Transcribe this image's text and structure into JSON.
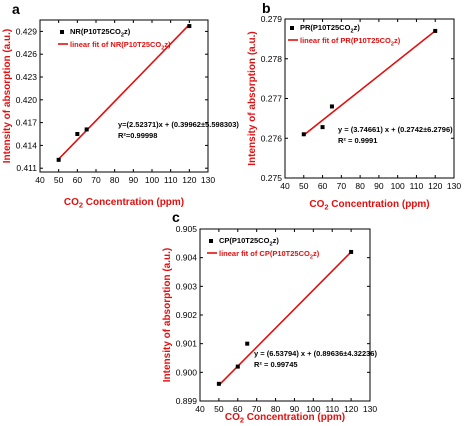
{
  "colors": {
    "fit_line": "#e01010",
    "points": "#000000",
    "axis_title_y": "#e01010",
    "axis": "#000000"
  },
  "chart_data": [
    {
      "type": "scatter",
      "panel": "a",
      "xlabel_main": "CO",
      "xlabel_sub": "2",
      "xlabel_rest": " Concentration (ppm)",
      "ylabel": "Intensity of absorption (a.u.)",
      "xlim": [
        40,
        130
      ],
      "ylim": [
        0.4105,
        0.4305
      ],
      "xticks": [
        40,
        50,
        60,
        70,
        80,
        90,
        100,
        110,
        120,
        130
      ],
      "yticks": [
        0.411,
        0.414,
        0.417,
        0.42,
        0.423,
        0.426,
        0.429
      ],
      "ytick_labels": [
        "0.411",
        "0.414",
        "0.417",
        "0.420",
        "0.423",
        "0.426",
        "0.429"
      ],
      "legend": {
        "points_label": "NR(P10T25CO",
        "points_sub": "2",
        "points_tail": "z)",
        "fit_label": "linear fit of NR(P10T25CO",
        "fit_sub": "2",
        "fit_tail": "z)"
      },
      "points": [
        {
          "x": 50,
          "y": 0.4121
        },
        {
          "x": 60,
          "y": 0.4155
        },
        {
          "x": 65,
          "y": 0.4161
        },
        {
          "x": 120,
          "y": 0.4297
        }
      ],
      "fit": {
        "x1": 50,
        "y1": 0.4122,
        "x2": 120,
        "y2": 0.4299
      },
      "equation": [
        "y=(2.52371)x + (0.39962±5.598303)",
        "R²=0.99998"
      ]
    },
    {
      "type": "scatter",
      "panel": "b",
      "xlabel_main": "CO",
      "xlabel_sub": "2",
      "xlabel_rest": " Concentration (ppm)",
      "ylabel": "Intensity of absorption (a.u.)",
      "xlim": [
        40,
        130
      ],
      "ylim": [
        0.275,
        0.279
      ],
      "xticks": [
        40,
        50,
        60,
        70,
        80,
        90,
        100,
        110,
        120,
        130
      ],
      "yticks": [
        0.275,
        0.276,
        0.277,
        0.278,
        0.279
      ],
      "ytick_labels": [
        "0.275",
        "0.276",
        "0.277",
        "0.278",
        "0.279"
      ],
      "legend": {
        "points_label": "PR(P10T25CO",
        "points_sub": "2",
        "points_tail": "z)",
        "fit_label": "linear fit of PR(P10T25CO",
        "fit_sub": "2",
        "fit_tail": "z)"
      },
      "points": [
        {
          "x": 50,
          "y": 0.2761
        },
        {
          "x": 60,
          "y": 0.27628
        },
        {
          "x": 65,
          "y": 0.2768
        },
        {
          "x": 120,
          "y": 0.2787
        }
      ],
      "fit": {
        "x1": 50,
        "y1": 0.27608,
        "x2": 120,
        "y2": 0.2787
      },
      "equation": [
        "y = (3.74661) x + (0.2742±6.2796)",
        "R² = 0.9991"
      ]
    },
    {
      "type": "scatter",
      "panel": "c",
      "xlabel_main": "CO",
      "xlabel_sub": "2",
      "xlabel_rest": " Concentration (ppm)",
      "ylabel": "Intensity of absorption (a.u.)",
      "xlim": [
        40,
        130
      ],
      "ylim": [
        0.899,
        0.905
      ],
      "xticks": [
        40,
        50,
        60,
        70,
        80,
        90,
        100,
        110,
        120,
        130
      ],
      "yticks": [
        0.899,
        0.9,
        0.901,
        0.902,
        0.903,
        0.904,
        0.905
      ],
      "ytick_labels": [
        "0.899",
        "0.900",
        "0.901",
        "0.902",
        "0.903",
        "0.904",
        "0.905"
      ],
      "legend": {
        "points_label": "CP(P10T25CO",
        "points_sub": "2",
        "points_tail": "z)",
        "fit_label": "linear fit of CP(P10T25CO",
        "fit_sub": "2",
        "fit_tail": "z)"
      },
      "points": [
        {
          "x": 50,
          "y": 0.8996
        },
        {
          "x": 60,
          "y": 0.9002
        },
        {
          "x": 65,
          "y": 0.901
        },
        {
          "x": 120,
          "y": 0.9042
        }
      ],
      "fit": {
        "x1": 50,
        "y1": 0.89955,
        "x2": 120,
        "y2": 0.9042
      },
      "equation": [
        "y = (6.53794) x + (0.89636±4.32236)",
        "R² = 0.99745"
      ]
    }
  ]
}
